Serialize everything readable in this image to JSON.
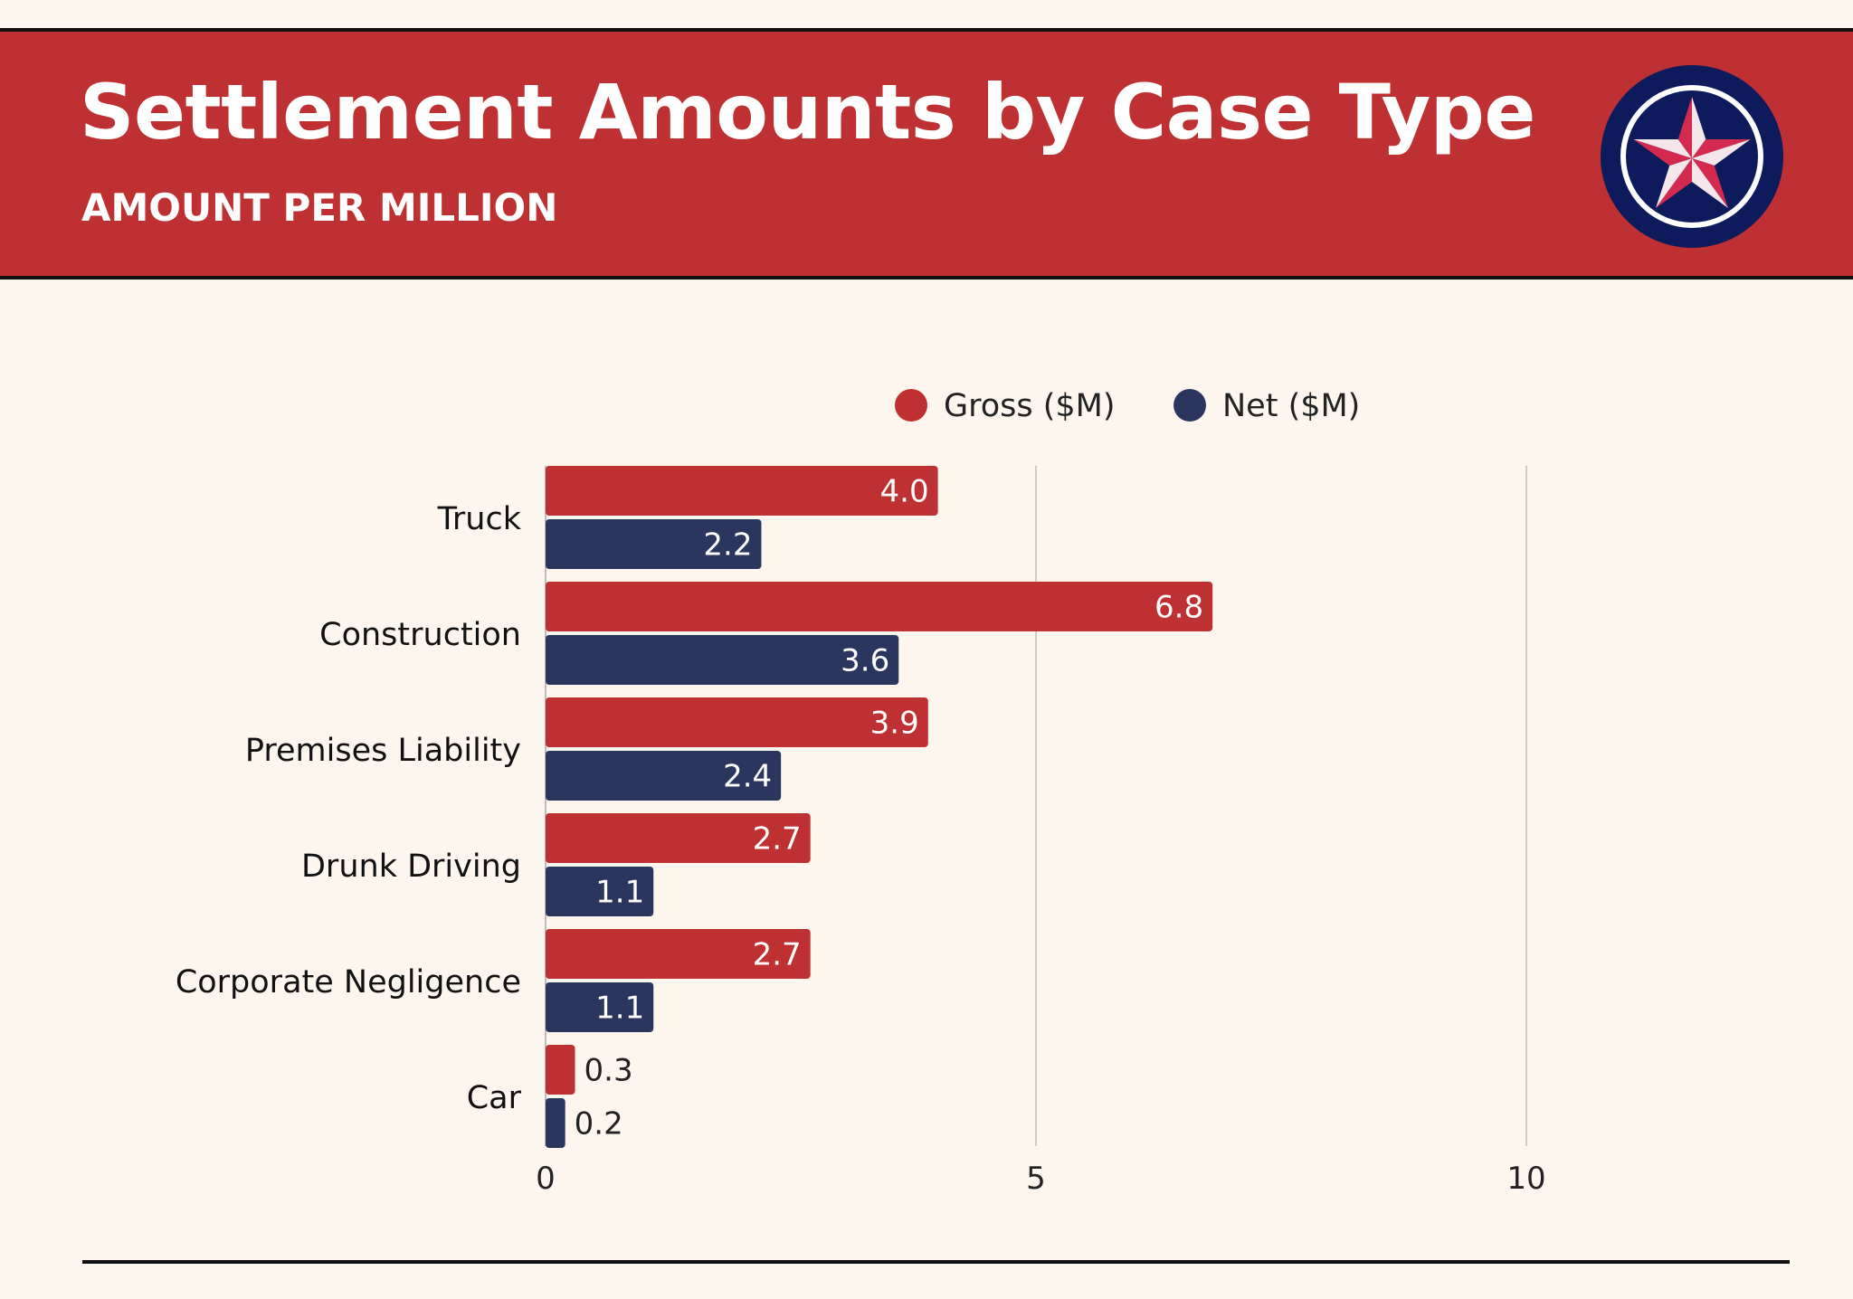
{
  "header": {
    "title": "Settlement Amounts by Case Type",
    "subtitle": "AMOUNT PER MILLION",
    "logo": "star-in-circle-icon"
  },
  "colors": {
    "gross": "#be3031",
    "net": "#2a365e",
    "background": "#fdf6ef",
    "header": "#be3031"
  },
  "chart_data": {
    "type": "bar",
    "orientation": "horizontal",
    "title": "",
    "xlabel": "",
    "ylabel": "",
    "categories": [
      "Truck",
      "Construction",
      "Premises Liability",
      "Drunk Driving",
      "Corporate Negligence",
      "Car"
    ],
    "series": [
      {
        "name": "Gross ($M)",
        "values": [
          4.0,
          6.8,
          3.9,
          2.7,
          2.7,
          0.3
        ]
      },
      {
        "name": "Net ($M)",
        "values": [
          2.2,
          3.6,
          2.4,
          1.1,
          1.1,
          0.2
        ]
      }
    ],
    "xlim": [
      0,
      12.5
    ],
    "xticks": [
      0,
      5,
      10
    ],
    "grid": true,
    "legend": "top-center",
    "data_labels": true
  }
}
